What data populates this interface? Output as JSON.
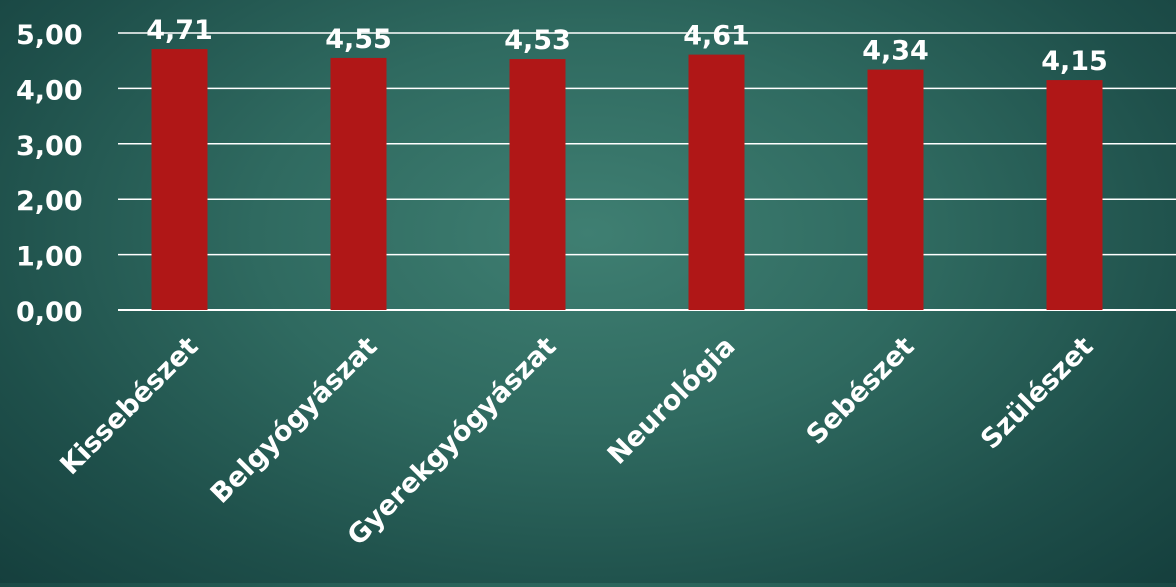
{
  "chart_data": {
    "type": "bar",
    "categories": [
      "Kissebészet",
      "Belgyógyászat",
      "Gyerekgyógyászat",
      "Neurológia",
      "Sebészet",
      "Szülészet"
    ],
    "values": [
      4.71,
      4.55,
      4.53,
      4.61,
      4.34,
      4.15
    ],
    "data_labels": [
      "4,71",
      "4,55",
      "4,53",
      "4,61",
      "4,34",
      "4,15"
    ],
    "y_ticks": [
      "0,00",
      "1,00",
      "2,00",
      "3,00",
      "4,00",
      "5,00"
    ],
    "ylim": [
      0,
      5
    ],
    "grid": true,
    "legend": "none",
    "title": "",
    "xlabel": "",
    "ylabel": "",
    "colors": {
      "bar": "#b01717",
      "gridline": "#ffffff",
      "text": "#ffffff"
    }
  }
}
